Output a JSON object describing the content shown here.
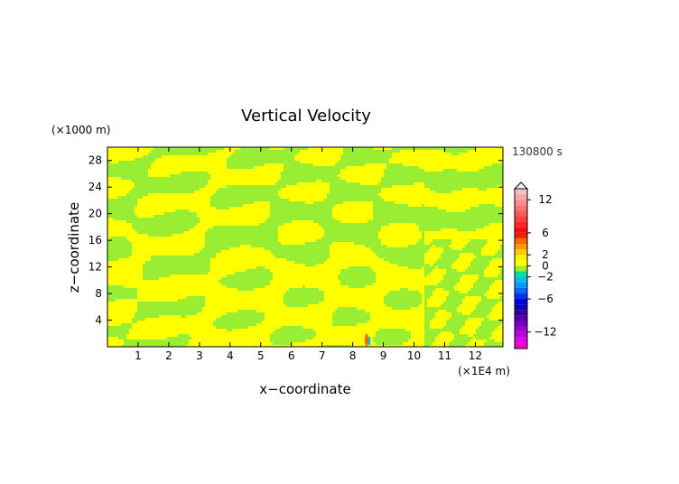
{
  "chart_data": {
    "type": "heatmap",
    "title": "Vertical Velocity",
    "xlabel": "x−coordinate",
    "ylabel": "z−coordinate",
    "x_unit": "(×1E4 m)",
    "y_unit": "(×1000 m)",
    "time_label": "130800 s",
    "xlim": [
      0,
      12.9
    ],
    "ylim": [
      0,
      30
    ],
    "x_ticks": [
      "1",
      "2",
      "3",
      "4",
      "5",
      "6",
      "7",
      "8",
      "9",
      "10",
      "11",
      "12"
    ],
    "y_ticks": [
      "4",
      "8",
      "12",
      "16",
      "20",
      "24",
      "28"
    ],
    "colorbar": {
      "tick_labels": [
        "12",
        "6",
        "2",
        "0",
        "−2",
        "−6",
        "−12"
      ],
      "levels": [
        {
          "min": 13,
          "max": 14,
          "color": "#ffbfbf"
        },
        {
          "min": 12,
          "max": 13,
          "color": "#ffa6a6"
        },
        {
          "min": 11,
          "max": 12,
          "color": "#ff8c8c"
        },
        {
          "min": 10,
          "max": 11,
          "color": "#ff7373"
        },
        {
          "min": 9,
          "max": 10,
          "color": "#ff5959"
        },
        {
          "min": 8,
          "max": 9,
          "color": "#ff4040"
        },
        {
          "min": 7,
          "max": 8,
          "color": "#ff2626"
        },
        {
          "min": 6,
          "max": 7,
          "color": "#ff0d0d"
        },
        {
          "min": 5,
          "max": 6,
          "color": "#e62600"
        },
        {
          "min": 4,
          "max": 5,
          "color": "#ff6600"
        },
        {
          "min": 3,
          "max": 4,
          "color": "#ff9900"
        },
        {
          "min": 2,
          "max": 3,
          "color": "#ffcc00"
        },
        {
          "min": 1,
          "max": 2,
          "color": "#ffee00"
        },
        {
          "min": 0,
          "max": 1,
          "color": "#ffff00"
        },
        {
          "min": -1,
          "max": 0,
          "color": "#99ee33"
        },
        {
          "min": -2,
          "max": -1,
          "color": "#00dd99"
        },
        {
          "min": -3,
          "max": -2,
          "color": "#00bbee"
        },
        {
          "min": -4,
          "max": -3,
          "color": "#0099ff"
        },
        {
          "min": -5,
          "max": -4,
          "color": "#0066ff"
        },
        {
          "min": -6,
          "max": -5,
          "color": "#0033ee"
        },
        {
          "min": -7,
          "max": -6,
          "color": "#0000dd"
        },
        {
          "min": -8,
          "max": -7,
          "color": "#1100bb"
        },
        {
          "min": -9,
          "max": -8,
          "color": "#330099"
        },
        {
          "min": -10,
          "max": -9,
          "color": "#5500aa"
        },
        {
          "min": -11,
          "max": -10,
          "color": "#7700bb"
        },
        {
          "min": -12,
          "max": -11,
          "color": "#9900cc"
        },
        {
          "min": -13,
          "max": -12,
          "color": "#bb00dd"
        },
        {
          "min": -14,
          "max": -13,
          "color": "#dd00ee"
        },
        {
          "min": -15,
          "max": -14,
          "color": "#ff00cc"
        }
      ]
    },
    "field": {
      "dominant_colors": [
        "#ffff00",
        "#99ee33"
      ],
      "note_colors": [
        "#ff6600",
        "#00bbee"
      ]
    }
  }
}
